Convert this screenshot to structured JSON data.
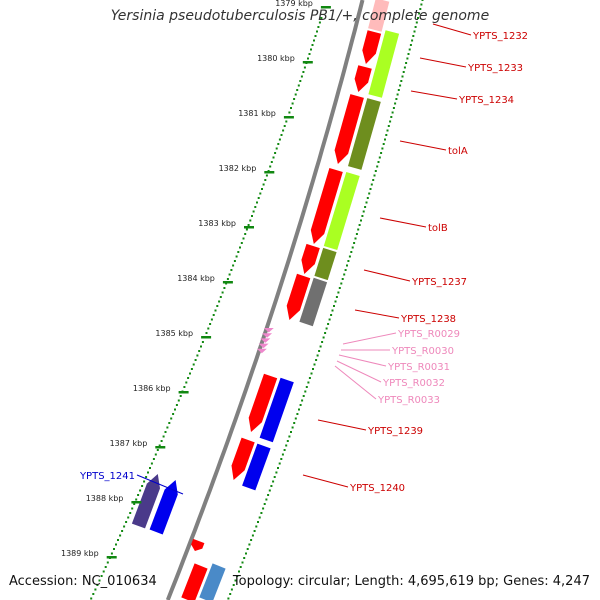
{
  "title": "Yersinia pseudotuberculosis PB1/+, complete genome",
  "footer": {
    "accession": "Accession: NC_010634",
    "summary": "Topology: circular; Length: 4,695,619 bp; Genes: 4,247"
  },
  "colors": {
    "forward_red": "#ff0000",
    "lime": "#aaff22",
    "olive": "#6e8e1e",
    "gray_gene": "#707070",
    "blue": "#0000ee",
    "navy": "#4a3a8a",
    "steel": "#4a8ac8",
    "pink_rna": "#ee88cc",
    "label_red": "#cc0000",
    "label_pink": "#ee88bb",
    "label_blue": "#0000cc",
    "tick_green": "#118811",
    "backbone": "#808080"
  },
  "scale": {
    "ticks": [
      {
        "label": "1379 kbp"
      },
      {
        "label": "1380 kbp"
      },
      {
        "label": "1381 kbp"
      },
      {
        "label": "1382 kbp"
      },
      {
        "label": "1383 kbp"
      },
      {
        "label": "1384 kbp"
      },
      {
        "label": "1385 kbp"
      },
      {
        "label": "1386 kbp"
      },
      {
        "label": "1387 kbp"
      },
      {
        "label": "1388 kbp"
      },
      {
        "label": "1389 kbp"
      }
    ]
  },
  "gene_labels": [
    {
      "text": "YPTS_1232",
      "color": "label_red"
    },
    {
      "text": "YPTS_1233",
      "color": "label_red"
    },
    {
      "text": "YPTS_1234",
      "color": "label_red"
    },
    {
      "text": "tolA",
      "color": "label_red"
    },
    {
      "text": "tolB",
      "color": "label_red"
    },
    {
      "text": "YPTS_1237",
      "color": "label_red"
    },
    {
      "text": "YPTS_1238",
      "color": "label_red"
    },
    {
      "text": "YPTS_R0029",
      "color": "label_pink"
    },
    {
      "text": "YPTS_R0030",
      "color": "label_pink"
    },
    {
      "text": "YPTS_R0031",
      "color": "label_pink"
    },
    {
      "text": "YPTS_R0032",
      "color": "label_pink"
    },
    {
      "text": "YPTS_R0033",
      "color": "label_pink"
    },
    {
      "text": "YPTS_1239",
      "color": "label_red"
    },
    {
      "text": "YPTS_1240",
      "color": "label_red"
    },
    {
      "text": "YPTS_1241",
      "color": "label_blue"
    }
  ]
}
